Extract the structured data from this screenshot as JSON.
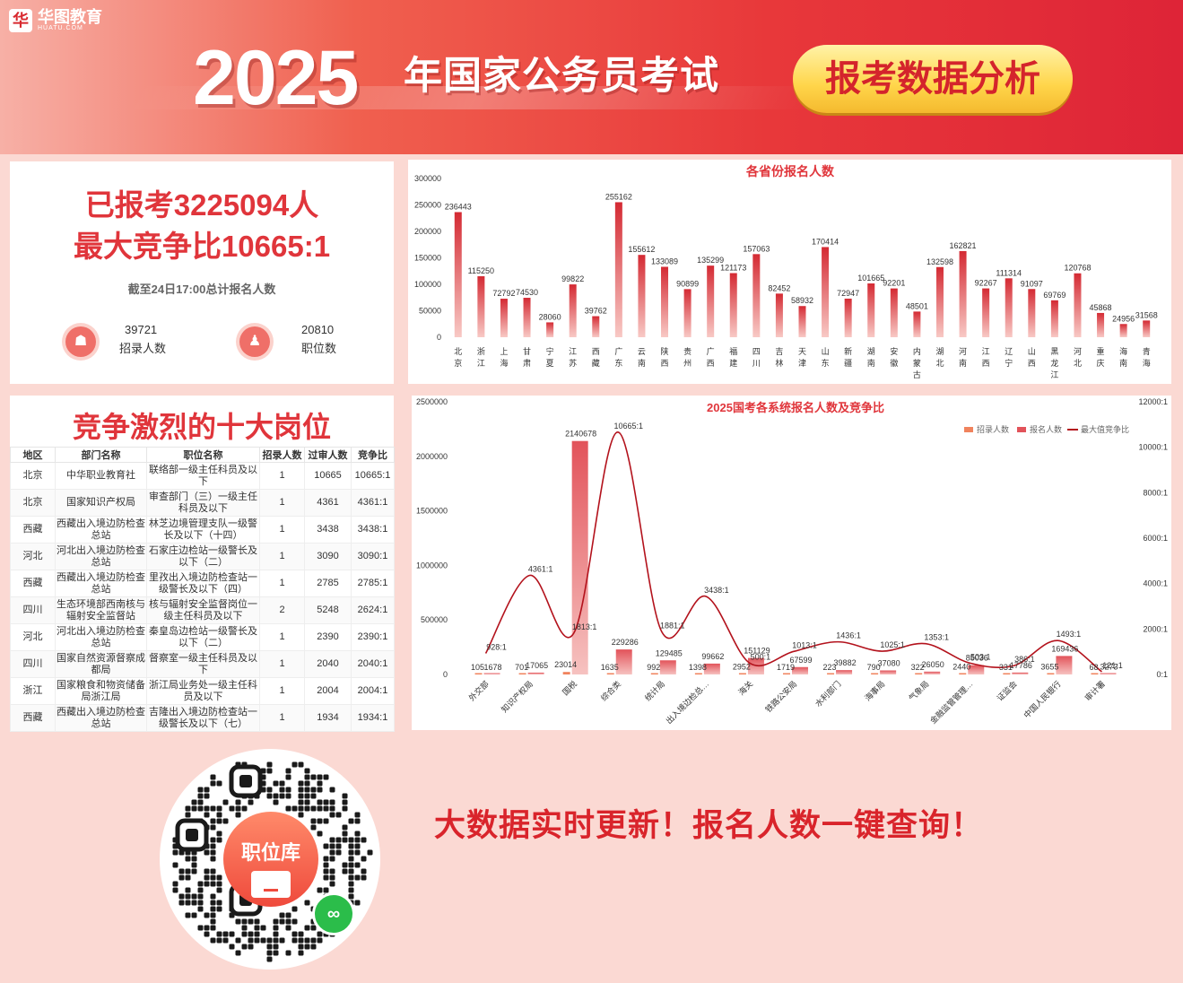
{
  "banner": {
    "logo_mark": "华",
    "logo_name": "华图教育",
    "logo_sub": "HUATU.COM",
    "year": "2025",
    "headline": "年国家公务员考试",
    "pill": "报考数据分析"
  },
  "summary": {
    "applied": "已报考3225094人",
    "max_ratio": "最大竞争比10665:1",
    "note": "截至24日17:00总计报名人数",
    "recruit_num": "39721",
    "recruit_label": "招录人数",
    "positions_num": "20810",
    "positions_label": "职位数",
    "icon_recruit": "shop-icon",
    "icon_positions": "people-icon"
  },
  "top10": {
    "title": "竞争激烈的十大岗位",
    "headers": [
      "地区",
      "部门名称",
      "职位名称",
      "招录人数",
      "过审人数",
      "竞争比"
    ],
    "rows": [
      [
        "北京",
        "中华职业教育社",
        "联络部一级主任科员及以下",
        "1",
        "10665",
        "10665:1"
      ],
      [
        "北京",
        "国家知识产权局",
        "审查部门（三）一级主任科员及以下",
        "1",
        "4361",
        "4361:1"
      ],
      [
        "西藏",
        "西藏出入境边防检查总站",
        "林芝边境管理支队一级警长及以下（十四）",
        "1",
        "3438",
        "3438:1"
      ],
      [
        "河北",
        "河北出入境边防检查总站",
        "石家庄边检站一级警长及以下（二）",
        "1",
        "3090",
        "3090:1"
      ],
      [
        "西藏",
        "西藏出入境边防检查总站",
        "里孜出入境边防检查站一级警长及以下（四）",
        "1",
        "2785",
        "2785:1"
      ],
      [
        "四川",
        "生态环境部西南核与辐射安全监督站",
        "核与辐射安全监督岗位一级主任科员及以下",
        "2",
        "5248",
        "2624:1"
      ],
      [
        "河北",
        "河北出入境边防检查总站",
        "秦皇岛边检站一级警长及以下（二）",
        "1",
        "2390",
        "2390:1"
      ],
      [
        "四川",
        "国家自然资源督察成都局",
        "督察室一级主任科员及以下",
        "1",
        "2040",
        "2040:1"
      ],
      [
        "浙江",
        "国家粮食和物资储备局浙江局",
        "浙江局业务处一级主任科员及以下",
        "1",
        "2004",
        "2004:1"
      ],
      [
        "西藏",
        "西藏出入境边防检查总站",
        "吉隆出入境边防检查站一级警长及以下（七）",
        "1",
        "1934",
        "1934:1"
      ]
    ]
  },
  "chart_data": [
    {
      "type": "bar",
      "title": "各省份报名人数",
      "categories": [
        "北京",
        "浙江",
        "上海",
        "甘肃",
        "宁夏",
        "江苏",
        "西藏",
        "广东",
        "云南",
        "陕西",
        "贵州",
        "广西",
        "福建",
        "四川",
        "吉林",
        "天津",
        "山东",
        "新疆",
        "湖南",
        "安徽",
        "内蒙古",
        "湖北",
        "河南",
        "江西",
        "辽宁",
        "山西",
        "黑龙江",
        "河北",
        "重庆",
        "海南",
        "青海"
      ],
      "values": [
        236443,
        115250,
        72792,
        74530,
        28060,
        99822,
        39762,
        255162,
        155612,
        133089,
        90899,
        135299,
        121173,
        157063,
        82452,
        58932,
        170414,
        72947,
        101665,
        92201,
        48501,
        132598,
        162821,
        92267,
        111314,
        91097,
        69769,
        120768,
        45868,
        24956,
        31568
      ],
      "ylim": [
        0,
        300000
      ],
      "yticks": [
        "0",
        "50000",
        "100000",
        "150000",
        "200000",
        "250000",
        "300000"
      ],
      "colors": {
        "bar_top": "#d42a33",
        "bar_bottom": "#f8c9c5"
      }
    },
    {
      "type": "bar+line",
      "title": "2025国考各系统报名人数及竞争比",
      "legend": [
        "招录人数",
        "报名人数",
        "最大值竞争比"
      ],
      "legend_position": "top-right",
      "categories": [
        "外交部",
        "知识产权局",
        "国税",
        "综合类",
        "统计局",
        "出入境边检总…",
        "海关",
        "铁路公安局",
        "水利部门",
        "海事局",
        "气象局",
        "金融监管管理…",
        "证监会",
        "中国人民银行",
        "审计署"
      ],
      "series": [
        {
          "name": "招录人数",
          "values": [
            105,
            701,
            23014,
            1635,
            992,
            1398,
            2952,
            1719,
            223,
            790,
            322,
            2440,
            331,
            3655,
            68
          ]
        },
        {
          "name": "报名人数",
          "values": [
            1678,
            17065,
            2140678,
            229286,
            129485,
            99662,
            151129,
            67599,
            39882,
            37080,
            26050,
            85036,
            17786,
            169436,
            3273
          ]
        },
        {
          "name": "最大值竞争比",
          "values": [
            928,
            4361,
            1813,
            10665,
            1881,
            3438,
            500,
            1013,
            1436,
            1025,
            1353,
            503,
            386,
            1493,
            121
          ],
          "labels": [
            "928:1",
            "4361:1",
            "1813:1",
            "10665:1",
            "1881:1",
            "3438:1",
            "500:1",
            "1013:1",
            "1436:1",
            "1025:1",
            "1353:1",
            "503:1",
            "386:1",
            "1493:1",
            "121:1"
          ]
        }
      ],
      "ylim": [
        0,
        2500000
      ],
      "yticks": [
        "0",
        "500000",
        "1000000",
        "1500000",
        "2000000",
        "2500000"
      ],
      "y2lim": [
        0,
        12000
      ],
      "y2ticks": [
        "0:1",
        "2000:1",
        "4000:1",
        "6000:1",
        "8000:1",
        "10000:1",
        "12000:1"
      ],
      "colors": {
        "recruit": "#f0835d",
        "applied": "#e2535a",
        "ratio": "#b3121c"
      }
    }
  ],
  "qr": {
    "center_label": "职位库",
    "wechat_icon": "wechat-icon"
  },
  "slogan": "大数据实时更新！报名人数一键查询！"
}
